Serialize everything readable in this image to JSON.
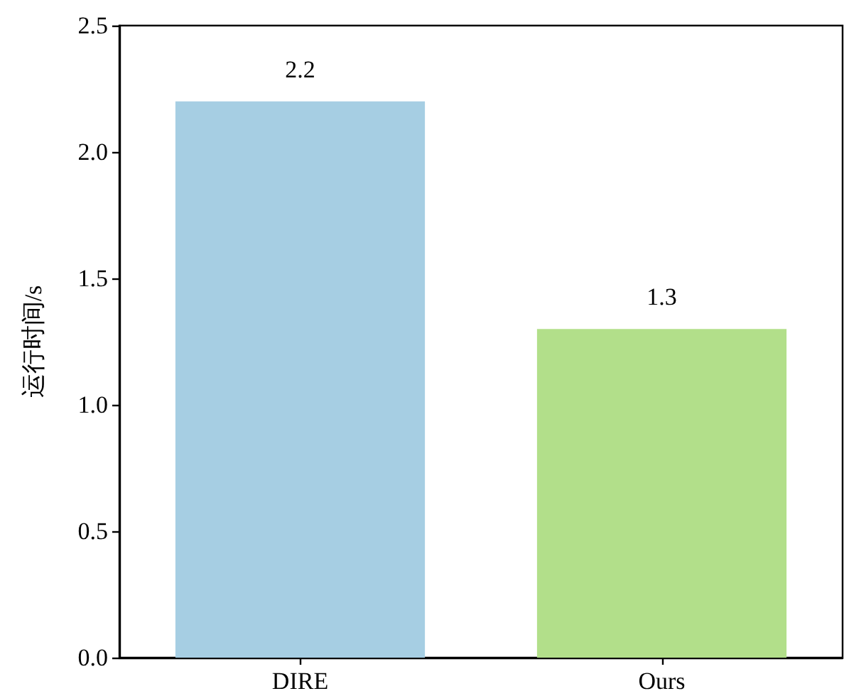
{
  "chart_data": {
    "type": "bar",
    "ylabel": "运行时间/s",
    "categories": [
      "DIRE",
      "Ours"
    ],
    "values": [
      2.2,
      1.3
    ],
    "colors": [
      "#a6cee3",
      "#b2df8a"
    ],
    "ylim": [
      0,
      2.5
    ],
    "yticks": [
      {
        "value": 0,
        "label": "0.0"
      },
      0.5,
      {
        "value": 1,
        "label": "1.0"
      },
      1.5,
      {
        "value": 2,
        "label": "2.0"
      },
      2.5
    ],
    "data_labels": true,
    "grid": false
  }
}
